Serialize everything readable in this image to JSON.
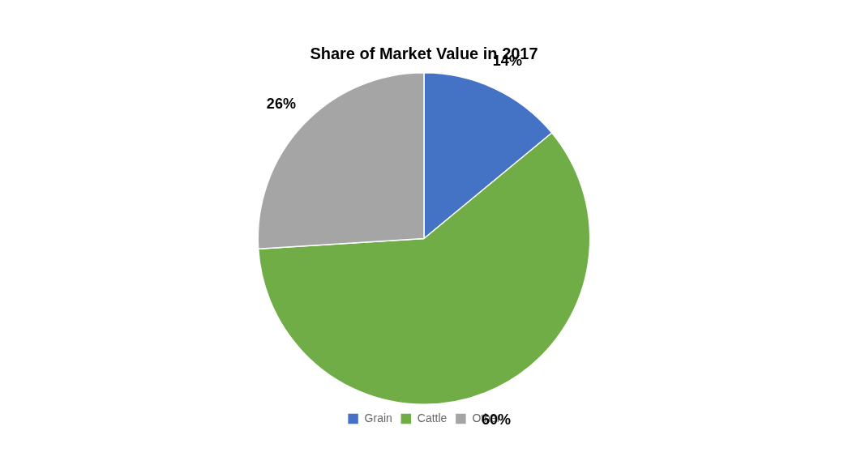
{
  "chart_data": {
    "type": "pie",
    "title": "Share of Market Value in 2017",
    "categories": [
      "Grain",
      "Cattle",
      "Other"
    ],
    "values": [
      14,
      60,
      26
    ],
    "value_labels": [
      "14%",
      "60%",
      "26%"
    ],
    "colors": [
      "#4472C4",
      "#70AD47",
      "#A5A5A5"
    ],
    "data_labels": true,
    "legend": "bottom"
  }
}
